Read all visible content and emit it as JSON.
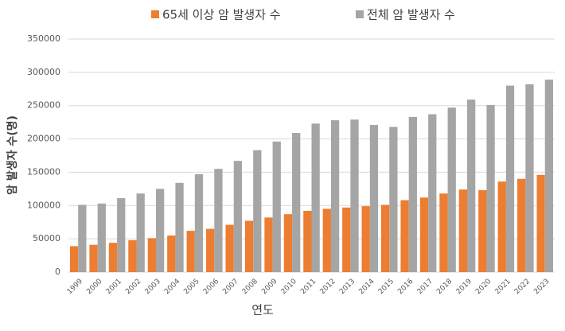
{
  "chart_data": {
    "type": "bar",
    "categories": [
      "1999",
      "2000",
      "2001",
      "2002",
      "2003",
      "2004",
      "2005",
      "2006",
      "2007",
      "2008",
      "2009",
      "2010",
      "2011",
      "2012",
      "2013",
      "2014",
      "2015",
      "2016",
      "2017",
      "2018",
      "2019",
      "2020",
      "2021",
      "2022",
      "2023"
    ],
    "series": [
      {
        "name": "65세 이상 암 발생자 수",
        "color": "#ed7d31",
        "values": [
          39000,
          41000,
          44000,
          48000,
          51000,
          55000,
          62000,
          65000,
          71000,
          77000,
          82000,
          87000,
          92000,
          95000,
          97000,
          99000,
          101000,
          108000,
          112000,
          118000,
          124000,
          123000,
          136000,
          140000,
          146000
        ]
      },
      {
        "name": "전체 암 발생자 수",
        "color": "#a5a5a5",
        "values": [
          101000,
          103000,
          111000,
          118000,
          125000,
          134000,
          147000,
          155000,
          167000,
          183000,
          196000,
          209000,
          223000,
          228000,
          229000,
          221000,
          218000,
          233000,
          237000,
          247000,
          259000,
          251000,
          280000,
          282000,
          289000
        ]
      }
    ],
    "x_label": "연도",
    "y_label": "암 발생자 수(명)",
    "ylim": [
      0,
      350000
    ],
    "yticks": [
      0,
      50000,
      100000,
      150000,
      200000,
      250000,
      300000,
      350000
    ],
    "grid": true,
    "legend": "top"
  }
}
